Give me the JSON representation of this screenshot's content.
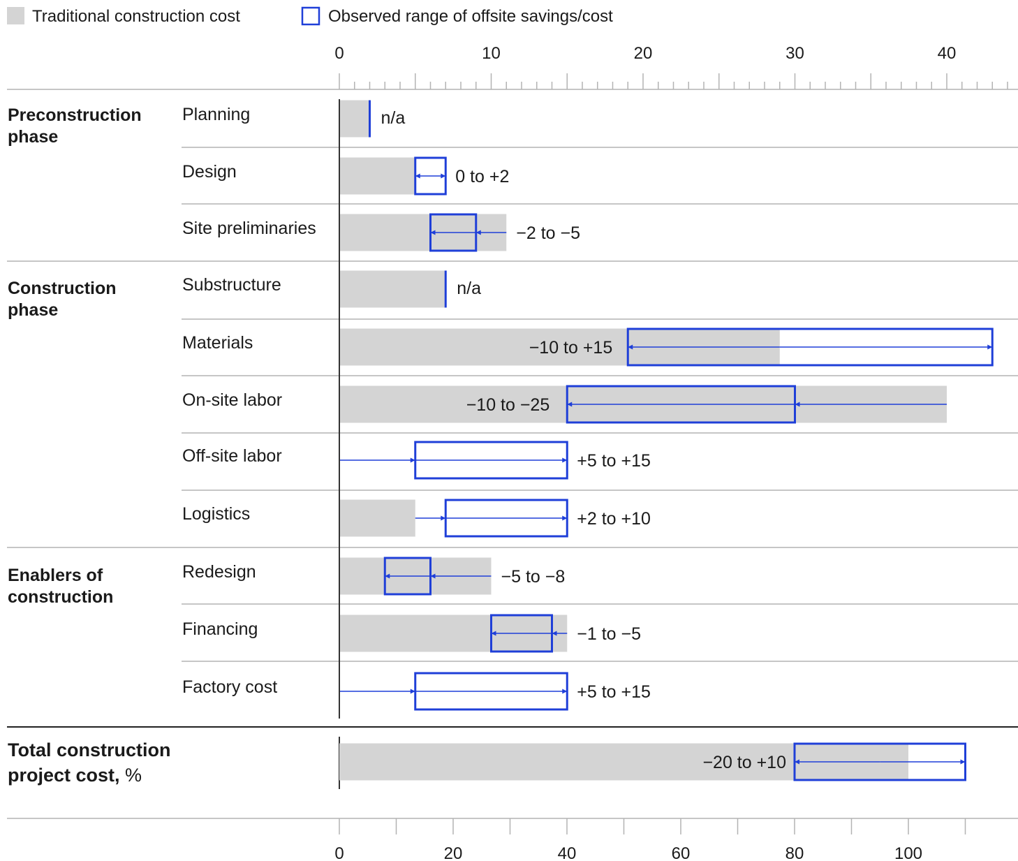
{
  "colors": {
    "traditional": "#d4d4d4",
    "range": "#1f3fd8",
    "axis": "#333333",
    "grid": "#b3b3b3",
    "text": "#1a1a1a"
  },
  "legend": {
    "traditional": "Traditional construction cost",
    "range": "Observed range of offsite savings/cost"
  },
  "chart_data": {
    "type": "bar",
    "top_axis": {
      "ticks": [
        0,
        10,
        20,
        30,
        40
      ],
      "xlim": [
        0,
        44
      ],
      "minor_step": 1
    },
    "bottom_axis": {
      "ticks": [
        0,
        20,
        40,
        60,
        80,
        100
      ],
      "xlim": [
        0,
        110
      ],
      "minor_step": 10
    },
    "groups": [
      {
        "label_line1": "Preconstruction",
        "label_line2": "phase",
        "bold": true
      },
      {
        "label_line1": "Construction",
        "label_line2": "phase",
        "bold": true
      },
      {
        "label_line1": "Enablers of",
        "label_line2": "construction",
        "bold": true
      }
    ],
    "rows": [
      {
        "group": 0,
        "label": "Planning",
        "traditional": 2,
        "range": null,
        "range_label": "n/a"
      },
      {
        "group": 0,
        "label": "Design",
        "traditional": 5,
        "range": [
          5,
          7
        ],
        "range_label": "0 to +2"
      },
      {
        "group": 0,
        "label": "Site preliminaries",
        "traditional": 11,
        "range": [
          6,
          9
        ],
        "range_label": "−2 to −5"
      },
      {
        "group": 1,
        "label": "Substructure",
        "traditional": 7,
        "range": null,
        "range_label": "n/a"
      },
      {
        "group": 1,
        "label": "Materials",
        "traditional": 29,
        "range": [
          19,
          43
        ],
        "range_label": "−10 to +15"
      },
      {
        "group": 1,
        "label": "On-site labor",
        "traditional": 40,
        "range": [
          15,
          30
        ],
        "range_label": "−10 to −25"
      },
      {
        "group": 1,
        "label": "Off-site labor",
        "traditional": 0,
        "range": [
          5,
          15
        ],
        "range_label": "+5 to +15"
      },
      {
        "group": 1,
        "label": "Logistics",
        "traditional": 5,
        "range": [
          7,
          15
        ],
        "range_label": "+2 to +10"
      },
      {
        "group": 2,
        "label": "Redesign",
        "traditional": 10,
        "range": [
          3,
          6
        ],
        "range_label": "−5 to −8"
      },
      {
        "group": 2,
        "label": "Financing",
        "traditional": 15,
        "range": [
          10,
          14
        ],
        "range_label": "−1 to −5"
      },
      {
        "group": 2,
        "label": "Factory cost",
        "traditional": 0,
        "range": [
          5,
          15
        ],
        "range_label": "+5 to +15"
      }
    ],
    "total": {
      "label_line1": "Total construction",
      "label_line2_bold": "project cost,",
      "label_line2_unit": " %",
      "traditional": 100,
      "range": [
        80,
        110
      ],
      "range_label": "−20 to +10"
    }
  }
}
